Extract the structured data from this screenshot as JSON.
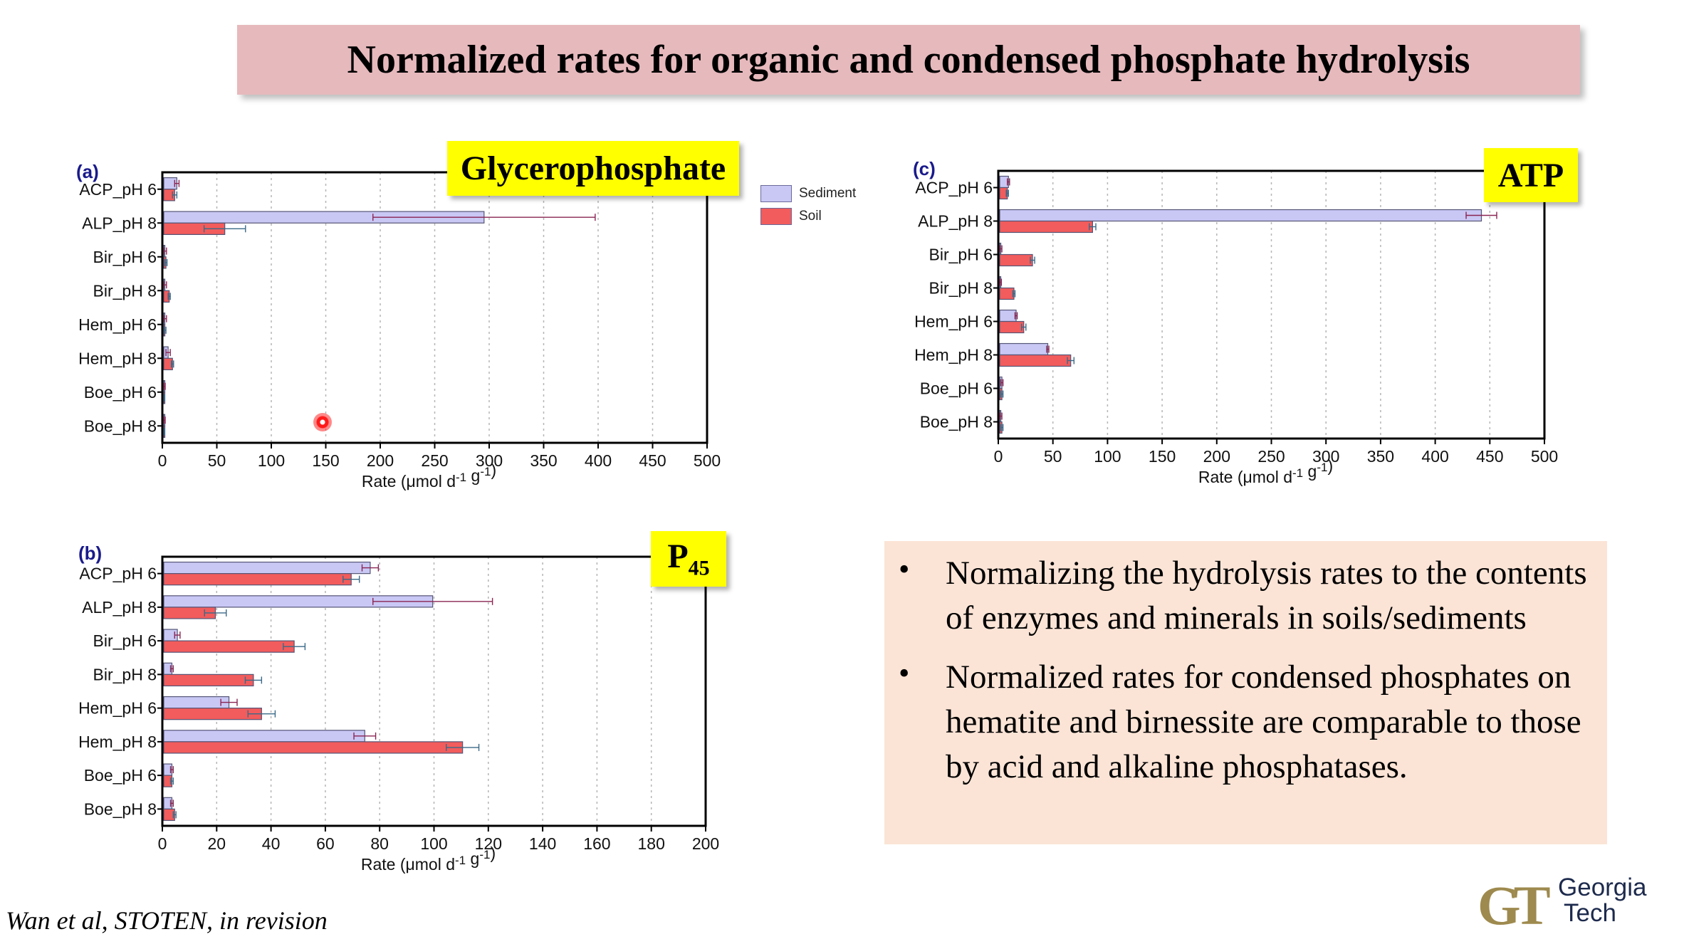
{
  "page": {
    "title": "Normalized rates for organic and condensed phosphate hydrolysis"
  },
  "legend": [
    {
      "name": "Sediment",
      "color": "#c9c8f5"
    },
    {
      "name": "Soil",
      "color": "#f25c5c"
    }
  ],
  "chart_data": [
    {
      "type": "bar",
      "orientation": "horizontal",
      "panel": "(a)",
      "title": "Glycerophosphate",
      "xlabel": "Rate (μmol d⁻¹ g⁻¹)",
      "xlim": [
        0,
        500
      ],
      "xticks": [
        0,
        50,
        100,
        150,
        200,
        250,
        300,
        350,
        400,
        450,
        500
      ],
      "categories": [
        "ACP_pH 6",
        "ALP_pH 8",
        "Bir_pH 6",
        "Bir_pH 8",
        "Hem_pH 6",
        "Hem_pH 8",
        "Boe_pH 6",
        "Boe_pH 8"
      ],
      "series": [
        {
          "name": "Sediment",
          "values": [
            12,
            294,
            0.5,
            0.5,
            0.5,
            4,
            0.3,
            0.3
          ],
          "errors": [
            2,
            102,
            2,
            2,
            2,
            2,
            1,
            1
          ]
        },
        {
          "name": "Soil",
          "values": [
            10,
            56,
            2,
            5,
            1,
            8,
            0.2,
            0.2
          ],
          "errors": [
            2,
            19,
            1,
            1,
            1,
            1,
            0.5,
            0.5
          ]
        }
      ],
      "grid": true
    },
    {
      "type": "bar",
      "orientation": "horizontal",
      "panel": "(c)",
      "title": "ATP",
      "xlabel": "Rate (μmol d⁻¹ g⁻¹)",
      "xlim": [
        0,
        500
      ],
      "xticks": [
        0,
        50,
        100,
        150,
        200,
        250,
        300,
        350,
        400,
        450,
        500
      ],
      "categories": [
        "ACP_pH 6",
        "ALP_pH 8",
        "Bir_pH 6",
        "Bir_pH 8",
        "Hem_pH 6",
        "Hem_pH 8",
        "Boe_pH 6",
        "Boe_pH 8"
      ],
      "series": [
        {
          "name": "Sediment",
          "values": [
            8,
            441,
            1,
            0.5,
            15,
            44,
            2,
            1
          ],
          "errors": [
            1,
            14,
            1,
            1,
            1,
            1,
            1,
            1
          ]
        },
        {
          "name": "Soil",
          "values": [
            7,
            85,
            30,
            13,
            22,
            65,
            2,
            2
          ],
          "errors": [
            1,
            3,
            2,
            1,
            2,
            3,
            1,
            1
          ]
        }
      ],
      "grid": true
    },
    {
      "type": "bar",
      "orientation": "horizontal",
      "panel": "(b)",
      "title": "P45",
      "xlabel": "Rate (μmol d⁻¹ g⁻¹)",
      "xlim": [
        0,
        200
      ],
      "xticks": [
        0,
        20,
        40,
        60,
        80,
        100,
        120,
        140,
        160,
        180,
        200
      ],
      "categories": [
        "ACP_pH 6",
        "ALP_pH 8",
        "Bir_pH 6",
        "Bir_pH 8",
        "Hem_pH 6",
        "Hem_pH 8",
        "Boe_pH 6",
        "Boe_pH 8"
      ],
      "series": [
        {
          "name": "Sediment",
          "values": [
            76,
            99,
            5,
            3,
            24,
            74,
            3,
            3
          ],
          "errors": [
            3,
            22,
            1,
            0.5,
            3,
            4,
            0.5,
            0.5
          ]
        },
        {
          "name": "Soil",
          "values": [
            69,
            19,
            48,
            33,
            36,
            110,
            3,
            4
          ],
          "errors": [
            3,
            4,
            4,
            3,
            5,
            6,
            0.5,
            0.5
          ]
        }
      ],
      "grid": true
    }
  ],
  "notes": [
    "Normalizing the hydrolysis rates to the contents of enzymes and minerals in soils/sediments",
    "Normalized rates for condensed phosphates on hematite and birnessite are comparable to those by acid and alkaline phosphatases."
  ],
  "citation": "Wan et al, STOTEN, in revision",
  "logo": {
    "mark": "GT",
    "line1": "Georgia",
    "line2": "Tech"
  }
}
